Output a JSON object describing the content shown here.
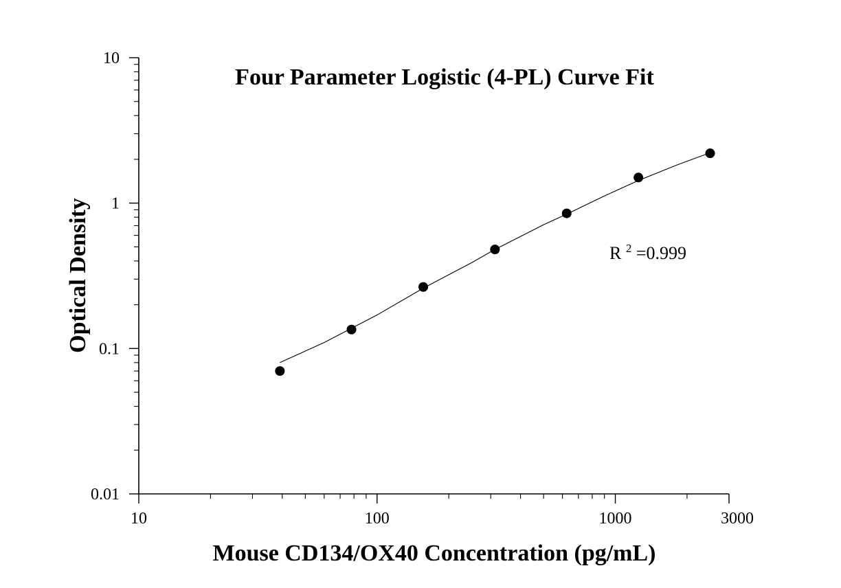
{
  "chart_data": {
    "type": "scatter",
    "title": "Four Parameter Logistic (4-PL) Curve Fit",
    "xlabel": "Mouse CD134/OX40 Concentration (pg/mL)",
    "ylabel": "Optical Density",
    "xscale": "log",
    "yscale": "log",
    "xlim": [
      10,
      3000
    ],
    "ylim": [
      0.01,
      10
    ],
    "x_ticks": [
      10,
      100,
      1000,
      3000
    ],
    "x_tick_labels": [
      "10",
      "100",
      "1000",
      "3000"
    ],
    "y_ticks": [
      0.01,
      0.1,
      1,
      10
    ],
    "y_tick_labels": [
      "0.01",
      "0.1",
      "1",
      "10"
    ],
    "grid": false,
    "legend": "none",
    "series": [
      {
        "type": "scatter",
        "x": [
          39.1,
          78.1,
          156.3,
          312.5,
          625,
          1250,
          2500
        ],
        "y": [
          0.07,
          0.135,
          0.265,
          0.48,
          0.85,
          1.5,
          2.2
        ]
      },
      {
        "type": "line",
        "x": [
          39.1,
          60,
          100,
          156.3,
          250,
          312.5,
          500,
          625,
          900,
          1250,
          1800,
          2500
        ],
        "y": [
          0.08,
          0.11,
          0.17,
          0.26,
          0.39,
          0.48,
          0.71,
          0.84,
          1.12,
          1.43,
          1.82,
          2.22
        ]
      }
    ],
    "annotations": [
      {
        "text_base": "R",
        "text_sup": "2",
        "text_rest": "=0.999"
      }
    ]
  },
  "colors": {
    "background": "#ffffff",
    "axis": "#000000",
    "marker": "#000000",
    "curve": "#000000"
  }
}
